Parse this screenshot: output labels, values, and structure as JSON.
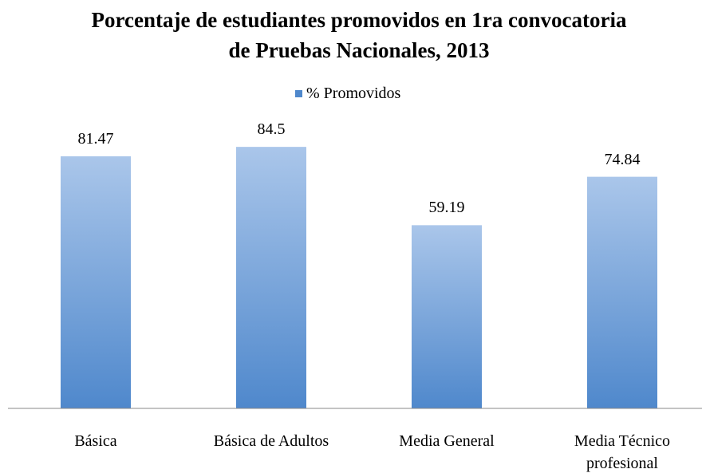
{
  "chart_data": {
    "type": "bar",
    "title": "Porcentaje de estudiantes promovidos en 1ra convocatoria de Pruebas Nacionales, 2013",
    "categories": [
      "Básica",
      "Básica de Adultos",
      "Media General",
      "Media Técnico profesional"
    ],
    "series": [
      {
        "name": "% Promovidos",
        "color": "#4f88cc",
        "values": [
          81.47,
          84.5,
          59.19,
          74.84
        ]
      }
    ],
    "legend": "top"
  }
}
